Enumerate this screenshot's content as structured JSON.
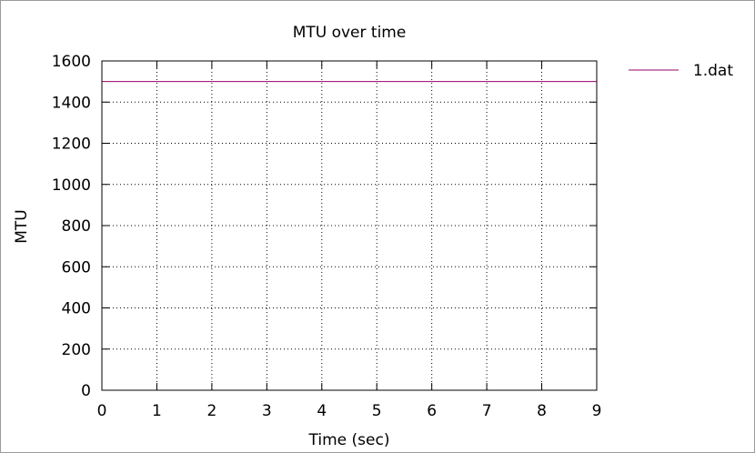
{
  "chart_data": {
    "type": "line",
    "title": "MTU over time",
    "xlabel": "Time (sec)",
    "ylabel": "MTU",
    "xlim": [
      0,
      9
    ],
    "ylim": [
      0,
      1600
    ],
    "xticks": [
      0,
      1,
      2,
      3,
      4,
      5,
      6,
      7,
      8,
      9
    ],
    "yticks": [
      0,
      200,
      400,
      600,
      800,
      1000,
      1200,
      1400,
      1600
    ],
    "grid": true,
    "legend_position": "outside-right",
    "series": [
      {
        "name": "1.dat",
        "color": "#94006b",
        "x": [
          0,
          1,
          2,
          3,
          4,
          5,
          6,
          7,
          8,
          9
        ],
        "y": [
          1500,
          1500,
          1500,
          1500,
          1500,
          1500,
          1500,
          1500,
          1500,
          1500
        ]
      }
    ]
  }
}
